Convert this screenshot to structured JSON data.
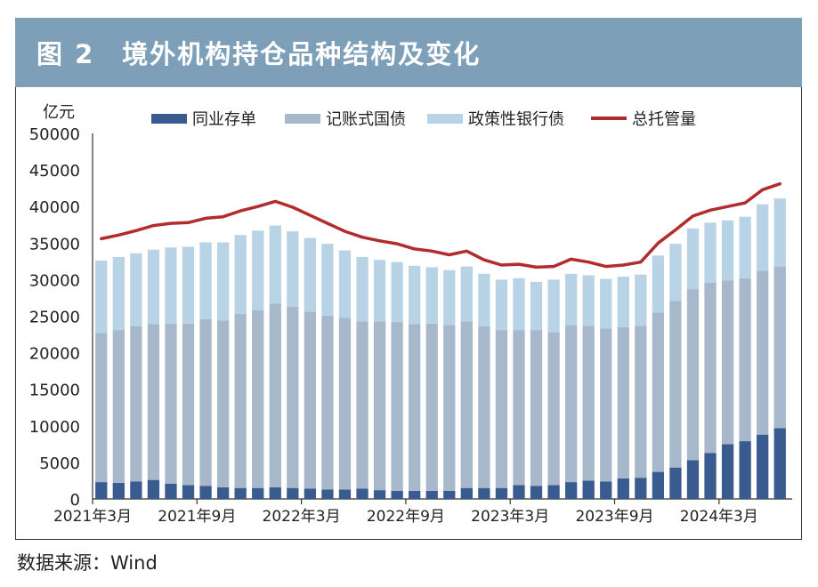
{
  "figure": {
    "title": "图 2　境外机构持仓品种结构及变化",
    "source": "数据来源：Wind"
  },
  "colors": {
    "header_bg": "#7d9fb8",
    "series_cd": "#3a5b8f",
    "series_gov": "#a8b8cb",
    "series_policy": "#b9d3e6",
    "series_total": "#b22c2e"
  },
  "chart_data": {
    "type": "bar",
    "subtype": "stacked bar with line overlay",
    "title": "境外机构持仓品种结构及变化",
    "ylabel": "亿元",
    "xlabel": "",
    "ylim": [
      0,
      50000
    ],
    "yticks": [
      "50000",
      "45000",
      "40000",
      "35000",
      "30000",
      "25000",
      "20000",
      "15000",
      "10000",
      "5000",
      "0"
    ],
    "xtick_labels": [
      "2021年3月",
      "2021年9月",
      "2022年3月",
      "2022年9月",
      "2023年3月",
      "2023年9月",
      "2024年3月"
    ],
    "legend": [
      "同业存单",
      "记账式国债",
      "政策性银行债",
      "总托管量"
    ],
    "legend_position": "top",
    "grid": false,
    "categories": [
      "2021-03",
      "2021-04",
      "2021-05",
      "2021-06",
      "2021-07",
      "2021-08",
      "2021-09",
      "2021-10",
      "2021-11",
      "2021-12",
      "2022-01",
      "2022-02",
      "2022-03",
      "2022-04",
      "2022-05",
      "2022-06",
      "2022-07",
      "2022-08",
      "2022-09",
      "2022-10",
      "2022-11",
      "2022-12",
      "2023-01",
      "2023-02",
      "2023-03",
      "2023-04",
      "2023-05",
      "2023-06",
      "2023-07",
      "2023-08",
      "2023-09",
      "2023-10",
      "2023-11",
      "2023-12",
      "2024-01",
      "2024-02",
      "2024-03",
      "2024-04",
      "2024-05",
      "2024-06"
    ],
    "series": [
      {
        "name": "同业存单",
        "kind": "bar",
        "values": [
          2300,
          2200,
          2400,
          2600,
          2100,
          1900,
          1800,
          1600,
          1500,
          1500,
          1600,
          1500,
          1400,
          1300,
          1300,
          1400,
          1200,
          1100,
          1100,
          1100,
          1100,
          1500,
          1500,
          1500,
          1900,
          1800,
          1900,
          2300,
          2500,
          2400,
          2800,
          2900,
          3700,
          4300,
          5300,
          6300,
          7500,
          7900,
          8800,
          9700
        ]
      },
      {
        "name": "记账式国债",
        "kind": "bar",
        "values": [
          20400,
          20900,
          21200,
          21300,
          21900,
          22100,
          22800,
          22800,
          23800,
          24300,
          25100,
          24800,
          24200,
          23800,
          23500,
          22900,
          23100,
          23100,
          22800,
          22900,
          22700,
          22800,
          22100,
          21600,
          21200,
          21300,
          20900,
          21500,
          21200,
          20900,
          20700,
          20800,
          21800,
          22800,
          23400,
          23300,
          22400,
          22300,
          22400,
          22100
        ]
      },
      {
        "name": "政策性银行债",
        "kind": "bar",
        "values": [
          9900,
          10000,
          10000,
          10200,
          10400,
          10500,
          10500,
          10700,
          10800,
          10900,
          10700,
          10300,
          10100,
          9800,
          9200,
          8800,
          8400,
          8200,
          8000,
          7700,
          7500,
          7500,
          7200,
          6900,
          7100,
          6600,
          7200,
          7000,
          6900,
          6800,
          6900,
          7000,
          7800,
          7800,
          8300,
          8200,
          8200,
          8400,
          9100,
          9300
        ]
      },
      {
        "name": "总托管量",
        "kind": "line",
        "values": [
          35600,
          36100,
          36700,
          37400,
          37700,
          37800,
          38400,
          38600,
          39400,
          40000,
          40700,
          39900,
          38800,
          37700,
          36600,
          35800,
          35300,
          34900,
          34200,
          33900,
          33400,
          33900,
          32700,
          32000,
          32100,
          31700,
          31800,
          32800,
          32400,
          31800,
          32000,
          32400,
          35000,
          36800,
          38700,
          39500,
          40000,
          40500,
          42300,
          43100
        ]
      }
    ]
  }
}
